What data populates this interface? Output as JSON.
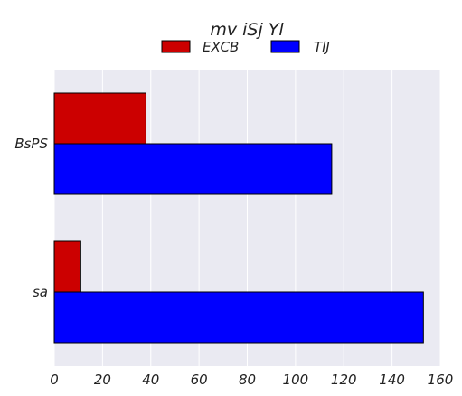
{
  "chart_data": {
    "type": "bar",
    "orientation": "horizontal",
    "title": "mv iSj Yl",
    "categories": [
      "BsPS",
      "sa"
    ],
    "series": [
      {
        "name": "EXCB",
        "color": "#cc0000",
        "values": [
          38,
          11
        ]
      },
      {
        "name": "TlJ",
        "color": "#0000ff",
        "values": [
          115,
          153
        ]
      }
    ],
    "xlim": [
      0,
      160
    ],
    "xticks": [
      "0",
      "20",
      "40",
      "60",
      "80",
      "100",
      "120",
      "140",
      "160"
    ],
    "grid": true,
    "legend_position": "top-center",
    "background": "#eaeaf2"
  }
}
